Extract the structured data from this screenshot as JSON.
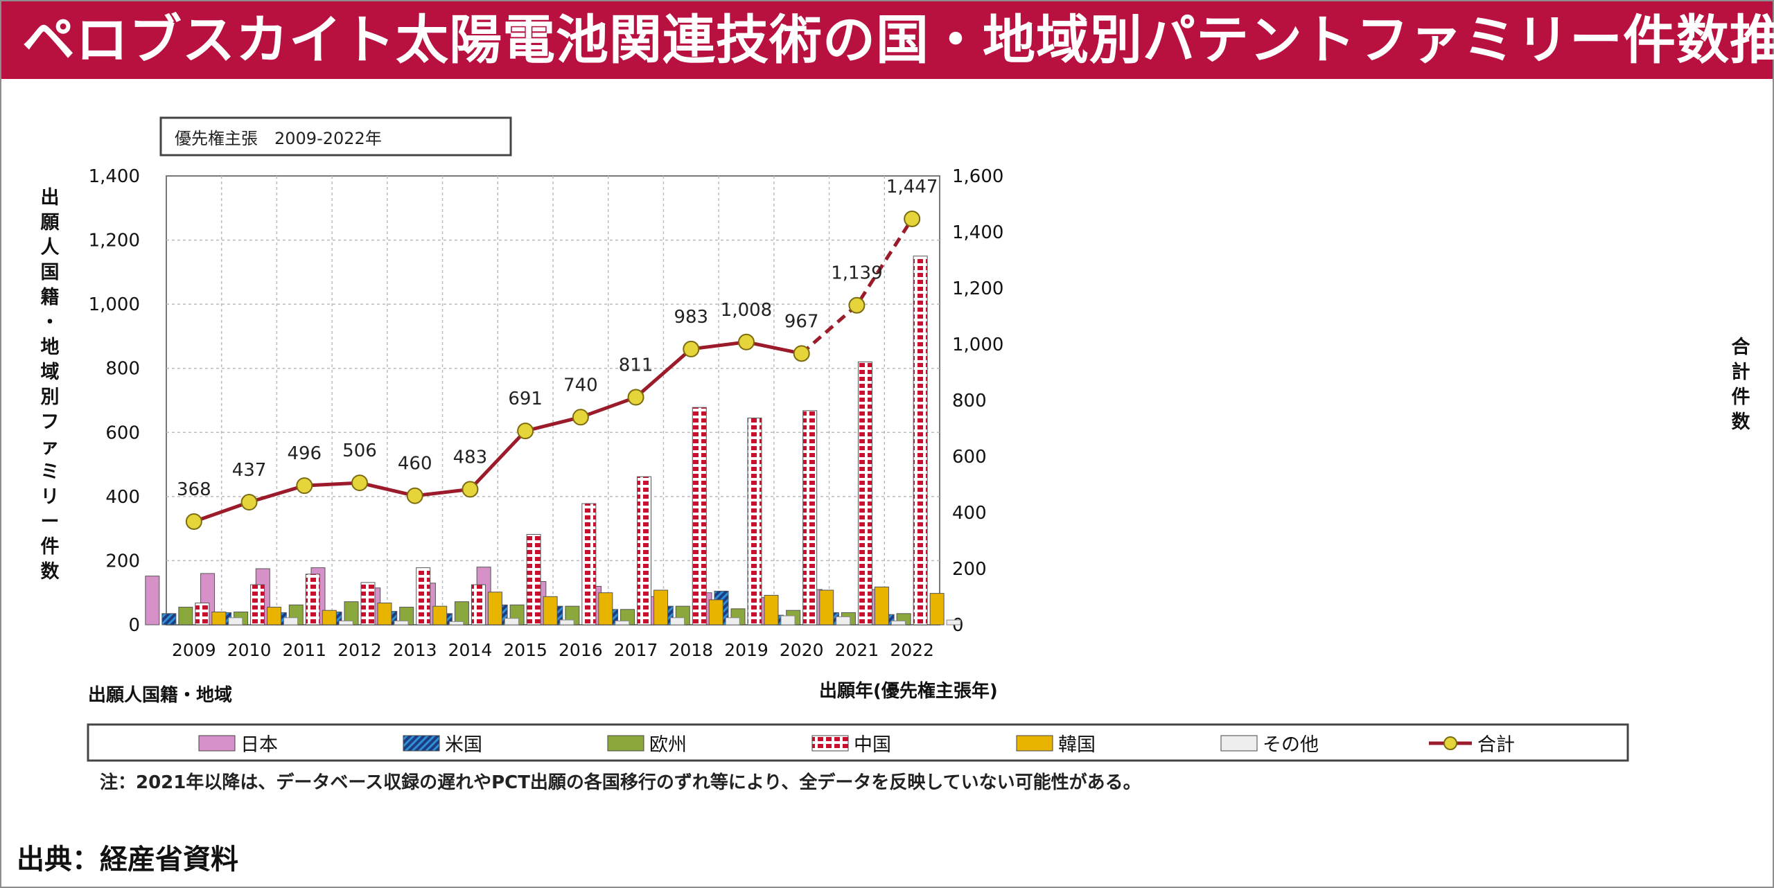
{
  "title": "ペロブスカイト太陽電池関連技術の国・地域別パテントファミリー件数推移",
  "source": "出典：経産省資料",
  "chart_data": {
    "type": "bar+line",
    "period_box": "優先権主張　2009-2022年",
    "categories": [
      "2009",
      "2010",
      "2011",
      "2012",
      "2013",
      "2014",
      "2015",
      "2016",
      "2017",
      "2018",
      "2019",
      "2020",
      "2021",
      "2022"
    ],
    "xlabel": "出願年(優先権主張年)",
    "ylabel_left": "出願人国籍・地域別ファミリー件数",
    "ylabel_right": "合計件数",
    "ylim_left": [
      0,
      1400
    ],
    "ylim_right": [
      0,
      1600
    ],
    "left_ticks": [
      "0",
      "200",
      "400",
      "600",
      "800",
      "1,000",
      "1,200",
      "1,400"
    ],
    "right_ticks": [
      "0",
      "200",
      "400",
      "600",
      "800",
      "1,000",
      "1,200",
      "1,400",
      "1,600"
    ],
    "grid": true,
    "legend_title": "出願人国籍・地域",
    "legend_position": "bottom",
    "series": [
      {
        "name": "日本",
        "color": "#d591c8",
        "values": [
          152,
          160,
          175,
          178,
          115,
          130,
          180,
          135,
          120,
          88,
          100,
          85,
          110,
          110
        ]
      },
      {
        "name": "米国",
        "color": "#1c3e80",
        "values": [
          35,
          38,
          38,
          40,
          42,
          35,
          62,
          58,
          48,
          58,
          105,
          30,
          38,
          32
        ]
      },
      {
        "name": "欧州",
        "color": "#8aa83c",
        "values": [
          55,
          40,
          62,
          72,
          55,
          72,
          62,
          58,
          48,
          58,
          50,
          45,
          38,
          35
        ]
      },
      {
        "name": "中国",
        "color": "#c8102e",
        "values": [
          68,
          125,
          158,
          132,
          178,
          125,
          282,
          378,
          462,
          678,
          645,
          668,
          820,
          1150
        ]
      },
      {
        "name": "韓国",
        "color": "#e8b400",
        "values": [
          40,
          55,
          45,
          68,
          58,
          102,
          88,
          100,
          108,
          78,
          92,
          108,
          118,
          98
        ]
      },
      {
        "name": "その他",
        "color": "#e8e8e8",
        "values": [
          22,
          22,
          12,
          12,
          10,
          20,
          15,
          12,
          22,
          22,
          28,
          25,
          12,
          15
        ]
      }
    ],
    "total": {
      "name": "合計",
      "color": "#9b1b2a",
      "values": [
        368,
        437,
        496,
        506,
        460,
        483,
        691,
        740,
        811,
        983,
        1008,
        967,
        1139,
        1447
      ],
      "labels": [
        "368",
        "437",
        "496",
        "506",
        "460",
        "483",
        "691",
        "740",
        "811",
        "983",
        "1,008",
        "967",
        "1,139",
        "1,447"
      ],
      "dashed_from": "2020"
    },
    "note": "注：2021年以降は、データベース収録の遅れやPCT出願の各国移行のずれ等により、全データを反映していない可能性がある。"
  }
}
